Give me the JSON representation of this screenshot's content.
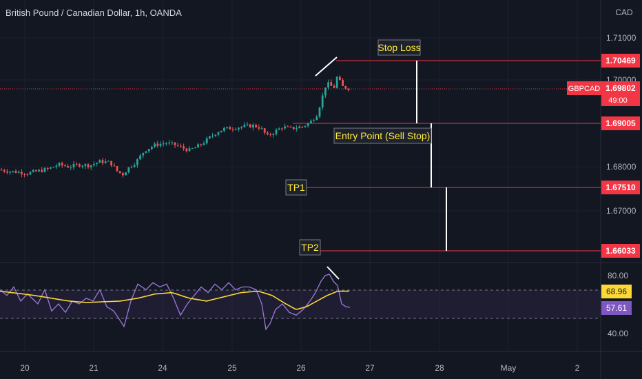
{
  "header": {
    "title": "British Pound / Canadian Dollar, 1h, OANDA",
    "currency": "CAD"
  },
  "colors": {
    "background": "#131722",
    "bull": "#26a69a",
    "bear": "#ef5350",
    "level_line": "#f23645",
    "annotation_text": "#ffeb3b",
    "rsi_line": "#9575cd",
    "rsi_ma": "#fdd835",
    "grid": "#1e222d"
  },
  "chart_data": [
    {
      "type": "candlestick",
      "symbol": "GBPCAD",
      "title": "British Pound / Canadian Dollar, 1h, OANDA",
      "y_axis": {
        "ticks": [
          1.71,
          1.7,
          1.68,
          1.67
        ],
        "tick_labels": [
          "1.71000",
          "1.70000",
          "1.68000",
          "1.67000"
        ],
        "range": [
          1.6585,
          1.7165
        ]
      },
      "x_axis": {
        "ticks": [
          "20",
          "21",
          "24",
          "25",
          "26",
          "27",
          "28",
          "May",
          "2"
        ]
      },
      "current_price": {
        "label": "GBPCAD",
        "value": 1.69802,
        "text": "1.69802",
        "countdown": "49:00"
      },
      "levels": [
        {
          "name": "Stop Loss",
          "value": 1.70469,
          "text": "1.70469"
        },
        {
          "name": "Entry Point (Sell Stop)",
          "value": 1.69005,
          "text": "1.69005"
        },
        {
          "name": "TP1",
          "value": 1.6751,
          "text": "1.67510"
        },
        {
          "name": "TP2",
          "value": 1.66033,
          "text": "1.66033"
        }
      ],
      "close_path": [
        [
          0,
          1.6793
        ],
        [
          12,
          1.679
        ],
        [
          25,
          1.6788
        ],
        [
          40,
          1.6785
        ],
        [
          55,
          1.679
        ],
        [
          70,
          1.6795
        ],
        [
          85,
          1.6805
        ],
        [
          100,
          1.68
        ],
        [
          115,
          1.6805
        ],
        [
          130,
          1.6803
        ],
        [
          145,
          1.6812
        ],
        [
          160,
          1.681
        ],
        [
          170,
          1.679
        ],
        [
          178,
          1.6782
        ],
        [
          188,
          1.68
        ],
        [
          198,
          1.6812
        ],
        [
          210,
          1.6838
        ],
        [
          225,
          1.685
        ],
        [
          240,
          1.6855
        ],
        [
          255,
          1.685
        ],
        [
          265,
          1.6843
        ],
        [
          275,
          1.6838
        ],
        [
          285,
          1.6845
        ],
        [
          295,
          1.6855
        ],
        [
          305,
          1.6868
        ],
        [
          315,
          1.688
        ],
        [
          325,
          1.6887
        ],
        [
          340,
          1.689
        ],
        [
          355,
          1.6893
        ],
        [
          368,
          1.6895
        ],
        [
          378,
          1.689
        ],
        [
          388,
          1.687
        ],
        [
          398,
          1.688
        ],
        [
          410,
          1.6892
        ],
        [
          420,
          1.6888
        ],
        [
          430,
          1.689
        ],
        [
          440,
          1.6893
        ],
        [
          450,
          1.6902
        ],
        [
          460,
          1.692
        ],
        [
          466,
          1.695
        ],
        [
          472,
          1.6985
        ],
        [
          478,
          1.6992
        ],
        [
          484,
          1.6978
        ],
        [
          490,
          1.701
        ],
        [
          496,
          1.6985
        ],
        [
          502,
          1.6982
        ],
        [
          508,
          1.698
        ]
      ]
    },
    {
      "type": "line",
      "indicator": "RSI",
      "y_axis": {
        "ticks": [
          80,
          40
        ],
        "tick_labels": [
          "80.00",
          "40.00"
        ],
        "range": [
          33,
          87
        ],
        "band": [
          30,
          70
        ]
      },
      "rsi_value": {
        "value": 57.61,
        "text": "57.61"
      },
      "ma_value": {
        "value": 68.96,
        "text": "68.96"
      },
      "rsi_path": [
        [
          0,
          70
        ],
        [
          10,
          66
        ],
        [
          20,
          72
        ],
        [
          30,
          62
        ],
        [
          40,
          67
        ],
        [
          55,
          60
        ],
        [
          65,
          70
        ],
        [
          75,
          55
        ],
        [
          85,
          60
        ],
        [
          95,
          54
        ],
        [
          105,
          62
        ],
        [
          115,
          60
        ],
        [
          125,
          64
        ],
        [
          135,
          62
        ],
        [
          145,
          70
        ],
        [
          155,
          58
        ],
        [
          165,
          55
        ],
        [
          172,
          50
        ],
        [
          180,
          44
        ],
        [
          190,
          62
        ],
        [
          200,
          74
        ],
        [
          212,
          70
        ],
        [
          222,
          75
        ],
        [
          232,
          72
        ],
        [
          242,
          74
        ],
        [
          252,
          64
        ],
        [
          262,
          52
        ],
        [
          272,
          60
        ],
        [
          282,
          66
        ],
        [
          292,
          72
        ],
        [
          302,
          68
        ],
        [
          312,
          74
        ],
        [
          322,
          70
        ],
        [
          332,
          75
        ],
        [
          342,
          70
        ],
        [
          352,
          72
        ],
        [
          362,
          72
        ],
        [
          372,
          70
        ],
        [
          380,
          60
        ],
        [
          386,
          42
        ],
        [
          392,
          46
        ],
        [
          400,
          56
        ],
        [
          410,
          60
        ],
        [
          420,
          54
        ],
        [
          430,
          52
        ],
        [
          440,
          56
        ],
        [
          450,
          62
        ],
        [
          458,
          68
        ],
        [
          466,
          76
        ],
        [
          472,
          80
        ],
        [
          478,
          81
        ],
        [
          484,
          76
        ],
        [
          490,
          73
        ],
        [
          496,
          60
        ],
        [
          502,
          58
        ],
        [
          508,
          57.61
        ]
      ],
      "ma_path": [
        [
          0,
          69
        ],
        [
          25,
          67.5
        ],
        [
          50,
          66
        ],
        [
          75,
          64
        ],
        [
          100,
          62
        ],
        [
          125,
          61
        ],
        [
          150,
          61.5
        ],
        [
          175,
          62
        ],
        [
          200,
          64
        ],
        [
          225,
          67
        ],
        [
          250,
          68
        ],
        [
          275,
          64
        ],
        [
          300,
          62
        ],
        [
          325,
          65
        ],
        [
          350,
          68
        ],
        [
          375,
          69
        ],
        [
          395,
          66
        ],
        [
          415,
          60
        ],
        [
          430,
          56
        ],
        [
          445,
          58
        ],
        [
          460,
          62
        ],
        [
          475,
          66
        ],
        [
          490,
          68.96
        ],
        [
          508,
          68.96
        ]
      ]
    }
  ]
}
